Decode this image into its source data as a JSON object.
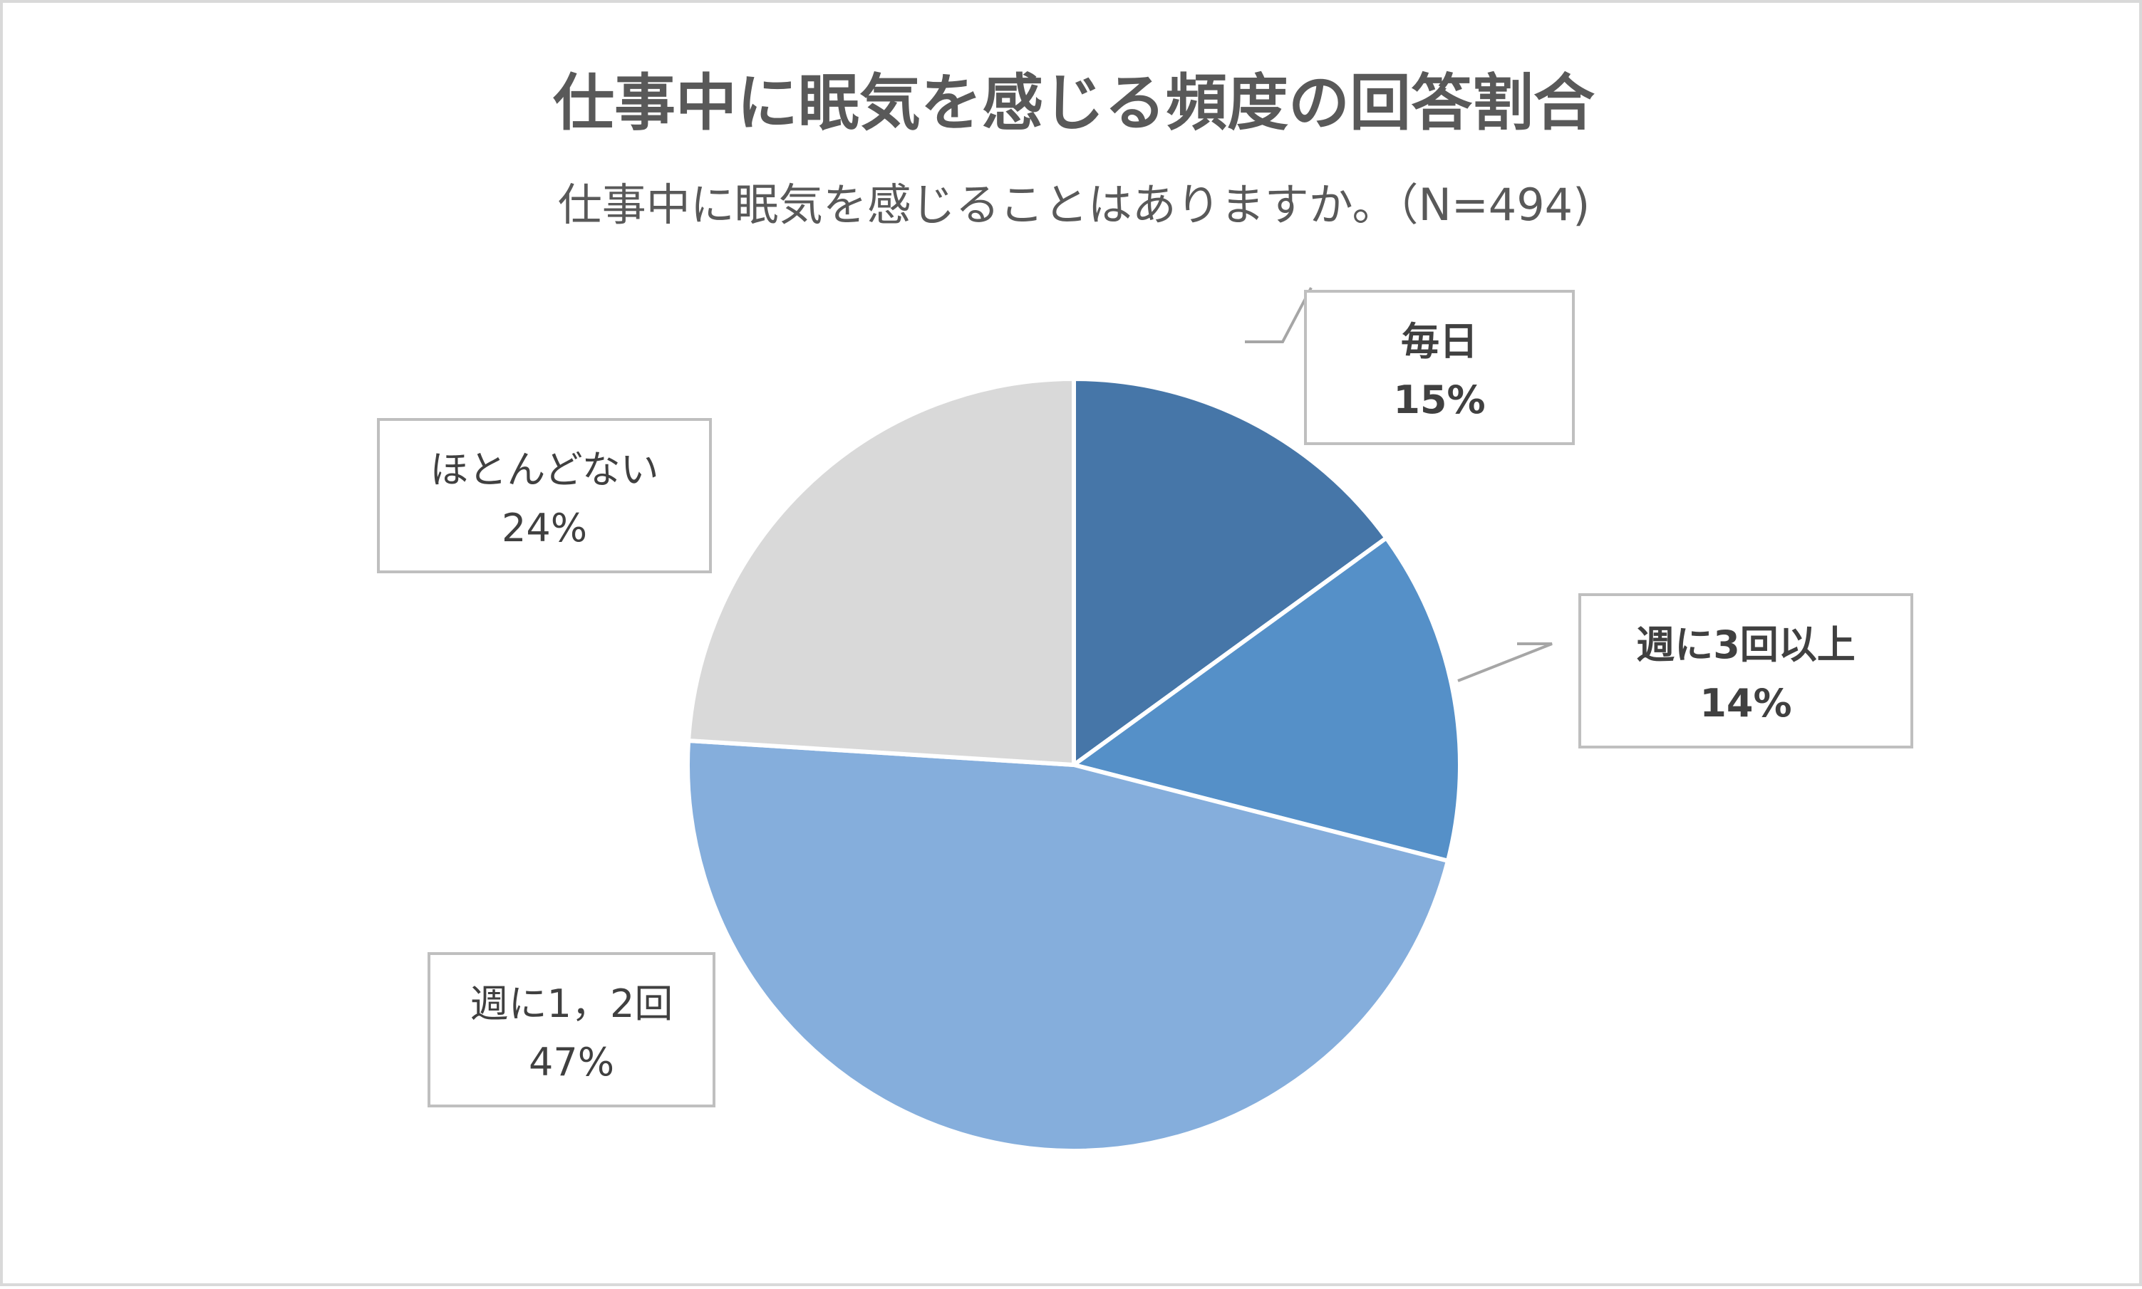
{
  "chart_data": {
    "type": "pie",
    "title": "仕事中に眠気を感じる頻度の回答割合",
    "subtitle": "仕事中に眠気を感じることはありますか。（N=494)",
    "slices": [
      {
        "label": "毎日",
        "value": 15,
        "value_label": "15%",
        "color": "#4676a8",
        "label_bold": true
      },
      {
        "label": "週に3回以上",
        "value": 14,
        "value_label": "14%",
        "color": "#5590c8",
        "label_bold": true
      },
      {
        "label": "週に1，2回",
        "value": 47,
        "value_label": "47%",
        "color": "#85aedc",
        "label_bold": false
      },
      {
        "label": "ほとんどない",
        "value": 24,
        "value_label": "24%",
        "color": "#d9d9d9",
        "label_bold": false
      }
    ],
    "start_angle_deg": 0,
    "direction": "clockwise",
    "legend": "none"
  }
}
